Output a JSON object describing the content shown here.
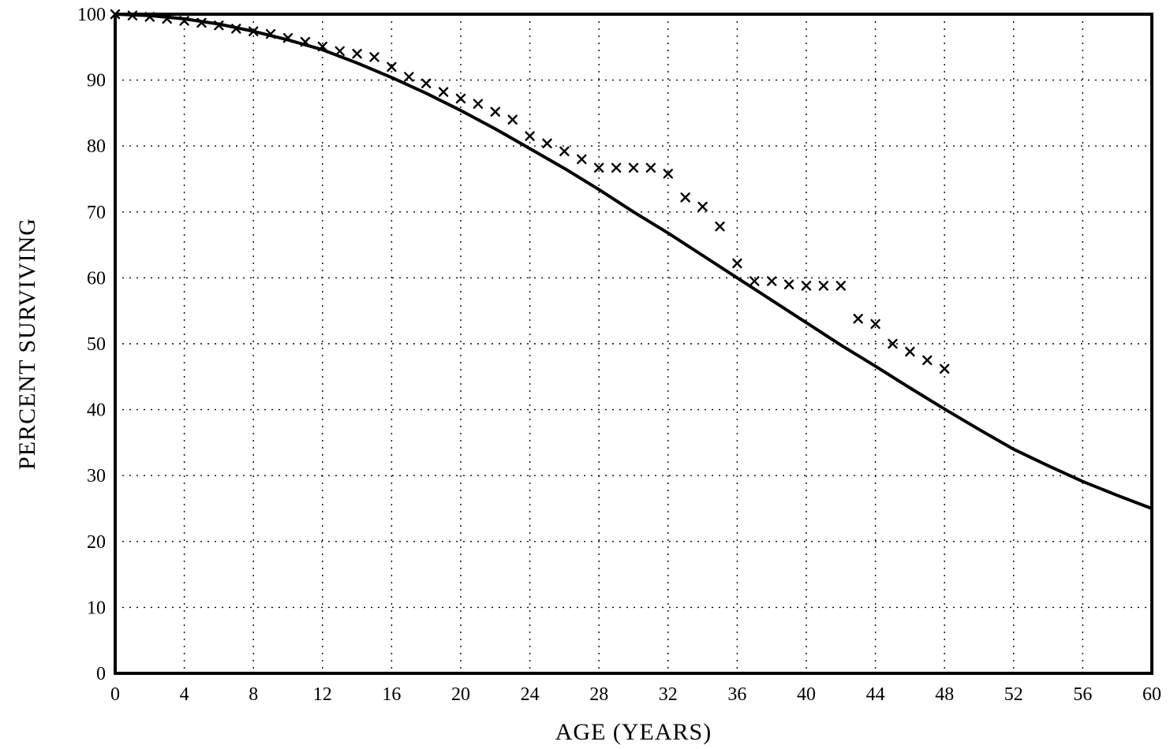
{
  "chart_data": {
    "type": "line",
    "title": "",
    "xlabel": "AGE (YEARS)",
    "ylabel": "PERCENT SURVIVING",
    "xlim": [
      0,
      60
    ],
    "ylim": [
      0,
      100
    ],
    "x_ticks": [
      0,
      4,
      8,
      12,
      16,
      20,
      24,
      28,
      32,
      36,
      40,
      44,
      48,
      52,
      56,
      60
    ],
    "y_ticks": [
      0,
      10,
      20,
      30,
      40,
      50,
      60,
      70,
      80,
      90,
      100
    ],
    "grid": "dotted",
    "line_color": "#000000",
    "series": [
      {
        "style": "line",
        "x": [
          0,
          2,
          4,
          6,
          8,
          10,
          12,
          14,
          16,
          18,
          20,
          22,
          24,
          26,
          28,
          30,
          32,
          34,
          36,
          38,
          40,
          42,
          44,
          46,
          48,
          50,
          52,
          54,
          56,
          58,
          60
        ],
        "values": [
          100,
          99.8,
          99.3,
          98.5,
          97.4,
          96.1,
          94.6,
          92.6,
          90.4,
          88.0,
          85.4,
          82.6,
          79.6,
          76.6,
          73.4,
          70.0,
          66.8,
          63.4,
          60.0,
          56.6,
          53.2,
          49.8,
          46.6,
          43.3,
          40.1,
          37.0,
          34.0,
          31.5,
          29.1,
          27.0,
          25.0
        ]
      },
      {
        "style": "marker-x",
        "x": [
          0,
          1,
          2,
          3,
          4,
          5,
          6,
          7,
          8,
          9,
          10,
          11,
          12,
          13,
          14,
          15,
          16,
          17,
          18,
          19,
          20,
          21,
          22,
          23,
          24,
          25,
          26,
          27,
          28,
          29,
          30,
          31,
          32,
          33,
          34,
          35,
          36,
          37,
          38,
          39,
          40,
          41,
          42,
          43,
          44,
          45,
          46,
          47,
          48
        ],
        "values": [
          100,
          99.8,
          99.6,
          99.3,
          99.0,
          98.7,
          98.3,
          97.8,
          97.4,
          97.0,
          96.4,
          95.8,
          95.1,
          94.4,
          94.0,
          93.5,
          92.0,
          90.5,
          89.5,
          88.2,
          87.2,
          86.4,
          85.2,
          84.0,
          81.5,
          80.4,
          79.2,
          78.0,
          76.7,
          76.7,
          76.7,
          76.7,
          75.8,
          72.2,
          70.8,
          67.8,
          62.2,
          59.5,
          59.5,
          59.0,
          58.8,
          58.8,
          58.8,
          53.8,
          53.0,
          50.0,
          48.8,
          47.5,
          46.2
        ]
      }
    ]
  }
}
